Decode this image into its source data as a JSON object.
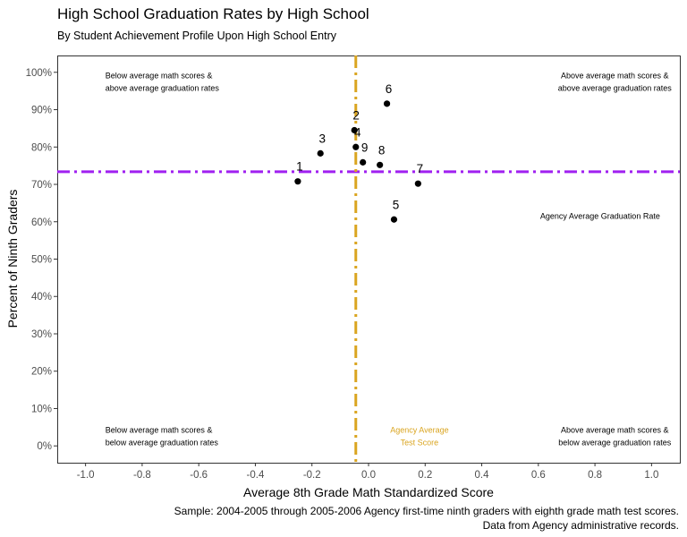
{
  "chart_data": {
    "type": "scatter",
    "title": "High School Graduation Rates by High School",
    "subtitle": "By Student Achievement Profile Upon High School Entry",
    "xlabel": "Average 8th Grade Math Standardized Score",
    "ylabel": "Percent of Ninth Graders",
    "xlim": [
      -1.1,
      1.1
    ],
    "ylim": [
      -4.5,
      104.5
    ],
    "xticks": [
      -1.0,
      -0.8,
      -0.6,
      -0.4,
      -0.2,
      0.0,
      0.2,
      0.4,
      0.6,
      0.8,
      1.0
    ],
    "xtick_labels": [
      "-1.0",
      "-0.8",
      "-0.6",
      "-0.4",
      "-0.2",
      "0.0",
      "0.2",
      "0.4",
      "0.6",
      "0.8",
      "1.0"
    ],
    "yticks": [
      0,
      10,
      20,
      30,
      40,
      50,
      60,
      70,
      80,
      90,
      100
    ],
    "ytick_labels": [
      "0%",
      "10%",
      "20%",
      "30%",
      "40%",
      "50%",
      "60%",
      "70%",
      "80%",
      "90%",
      "100%"
    ],
    "grid": false,
    "points": [
      {
        "label": "1",
        "x": -0.25,
        "y": 70.8
      },
      {
        "label": "2",
        "x": -0.05,
        "y": 84.5
      },
      {
        "label": "3",
        "x": -0.17,
        "y": 78.3
      },
      {
        "label": "4",
        "x": -0.045,
        "y": 80.0
      },
      {
        "label": "5",
        "x": 0.09,
        "y": 60.6
      },
      {
        "label": "6",
        "x": 0.065,
        "y": 91.6
      },
      {
        "label": "7",
        "x": 0.175,
        "y": 70.2
      },
      {
        "label": "8",
        "x": 0.04,
        "y": 75.2
      },
      {
        "label": "9",
        "x": -0.02,
        "y": 75.9
      }
    ],
    "reference_lines": {
      "agency_average_graduation_rate": {
        "y": 73.4,
        "color": "#a020f0"
      },
      "agency_average_test_score": {
        "x": -0.045,
        "color": "#daa520"
      }
    },
    "annotations": {
      "top_left": [
        "Below average math scores &",
        "above average graduation rates"
      ],
      "top_right": [
        "Above average math scores &",
        "above average graduation rates"
      ],
      "bottom_left": [
        "Below average math scores &",
        "below average graduation rates"
      ],
      "bottom_right": [
        "Above average math scores &",
        "below average graduation rates"
      ],
      "grad_rate_label": "Agency Average Graduation Rate",
      "test_score_label": [
        "Agency Average",
        "Test Score"
      ]
    },
    "caption": [
      "Sample: 2004-2005 through 2005-2006 Agency first-time ninth graders with eighth grade math test scores.",
      "Data from Agency administrative records."
    ]
  }
}
